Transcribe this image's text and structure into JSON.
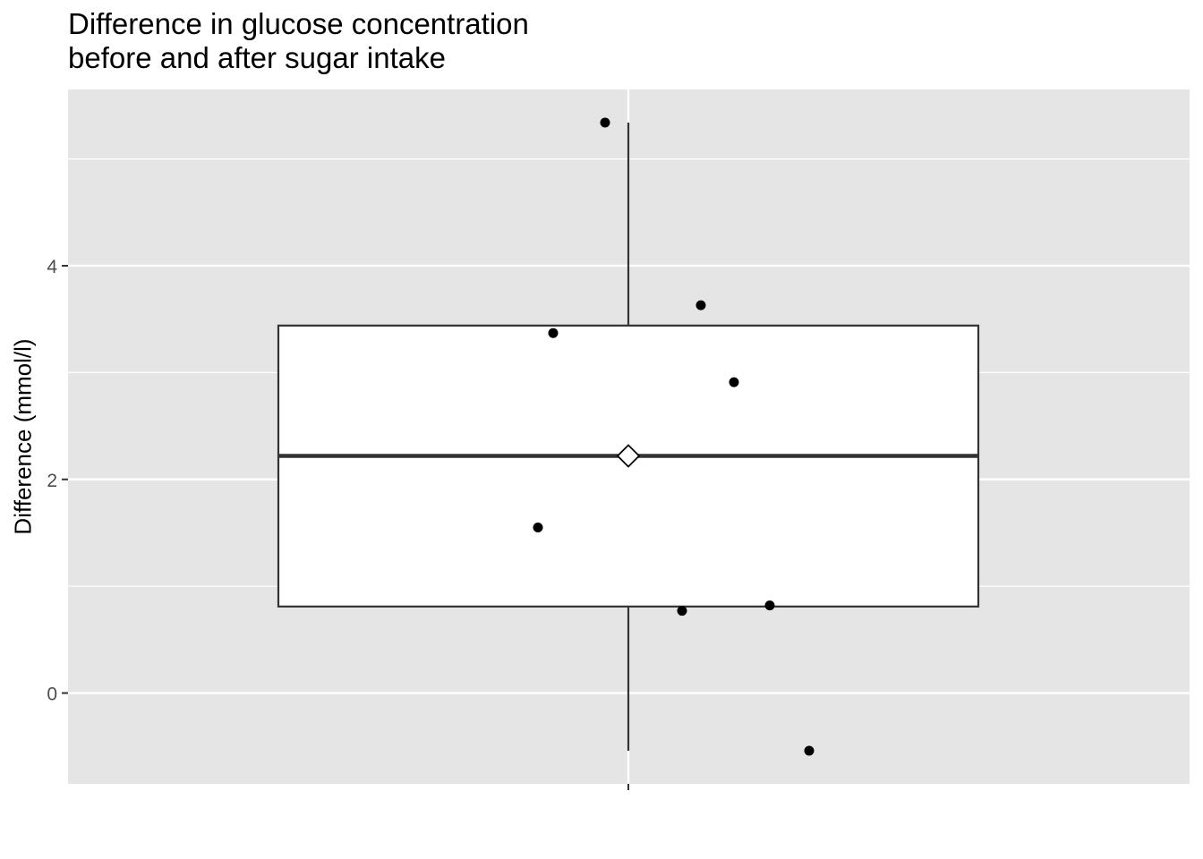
{
  "chart_data": {
    "type": "box",
    "title_lines": [
      "Difference in glucose concentration",
      "before and after sugar intake"
    ],
    "xlabel": "",
    "ylabel": "Difference (mmol/l)",
    "ylim": [
      -0.85,
      5.65
    ],
    "yticks": [
      0,
      2,
      4
    ],
    "ytick_labels": [
      "0",
      "2",
      "4"
    ],
    "grid": true,
    "box": {
      "min": -0.54,
      "q1": 0.81,
      "median": 2.22,
      "q3": 3.44,
      "max": 5.34,
      "mean": 2.22
    },
    "points": [
      {
        "y": 5.34
      },
      {
        "y": 3.63
      },
      {
        "y": 3.37
      },
      {
        "y": 2.91
      },
      {
        "y": 1.55
      },
      {
        "y": 0.82
      },
      {
        "y": 0.77
      },
      {
        "y": -0.54
      }
    ],
    "colors": {
      "panel": "#e5e5e5",
      "grid": "#ffffff",
      "box_fill": "#ffffff",
      "box_line": "#333333",
      "point": "#000000",
      "axis_text": "#4d4d4d"
    }
  }
}
